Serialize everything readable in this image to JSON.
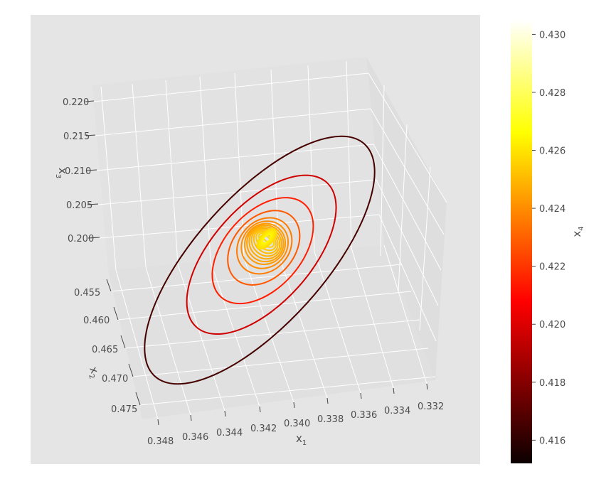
{
  "chart_data": {
    "type": "contour3d",
    "colormap": "hot",
    "background": "#e5e5e5",
    "grid": true,
    "xlabel": "x",
    "xlabel_sub": "1",
    "ylabel": "x",
    "ylabel_sub": "2",
    "zlabel": "x",
    "zlabel_sub": "3",
    "colorbar_label": "x",
    "colorbar_label_sub": "4",
    "x_ticks": [
      "0.348",
      "0.346",
      "0.344",
      "0.342",
      "0.340",
      "0.338",
      "0.336",
      "0.334",
      "0.332"
    ],
    "y_ticks": [
      "0.455",
      "0.460",
      "0.465",
      "0.470",
      "0.475"
    ],
    "z_ticks": [
      "0.220",
      "0.215",
      "0.210",
      "0.205",
      "0.200"
    ],
    "colorbar_ticks": [
      "0.430",
      "0.428",
      "0.426",
      "0.424",
      "0.422",
      "0.420",
      "0.418",
      "0.416"
    ],
    "colorbar_range": [
      0.4152,
      0.4305
    ],
    "contour_center": {
      "x1": 0.3405,
      "x2": 0.465,
      "x3": 0.2085
    },
    "contour_levels": [
      0.4165,
      0.4195,
      0.4215,
      0.4228,
      0.4236,
      0.424,
      0.4243,
      0.4245,
      0.4247,
      0.4249,
      0.4251,
      0.4253,
      0.4255,
      0.4257
    ]
  }
}
